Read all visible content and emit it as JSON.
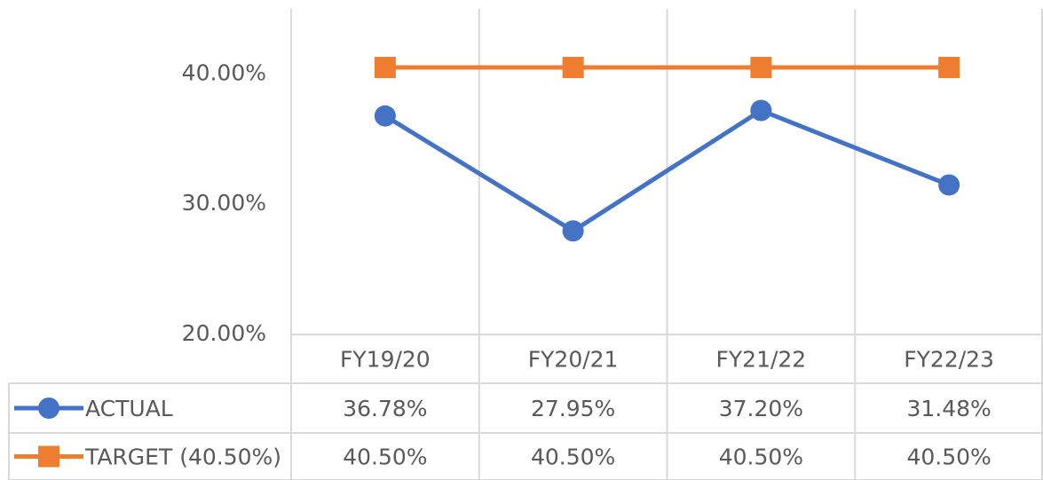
{
  "chart_data": {
    "type": "line",
    "categories": [
      "FY19/20",
      "FY20/21",
      "FY21/22",
      "FY22/23"
    ],
    "series": [
      {
        "name": "ACTUAL",
        "color": "#4472c4",
        "marker": "circle",
        "values": [
          36.78,
          27.95,
          37.2,
          31.48
        ],
        "value_labels": [
          "36.78%",
          "27.95%",
          "37.20%",
          "31.48%"
        ]
      },
      {
        "name": "TARGET (40.50%)",
        "color": "#ed7d31",
        "marker": "square",
        "values": [
          40.5,
          40.5,
          40.5,
          40.5
        ],
        "value_labels": [
          "40.50%",
          "40.50%",
          "40.50%",
          "40.50%"
        ]
      }
    ],
    "ylim": [
      20,
      45
    ],
    "yticks": [
      {
        "value": 20,
        "label": "20.00%"
      },
      {
        "value": 30,
        "label": "30.00%"
      },
      {
        "value": 40,
        "label": "40.00%"
      }
    ],
    "grid": false,
    "data_table": true
  }
}
